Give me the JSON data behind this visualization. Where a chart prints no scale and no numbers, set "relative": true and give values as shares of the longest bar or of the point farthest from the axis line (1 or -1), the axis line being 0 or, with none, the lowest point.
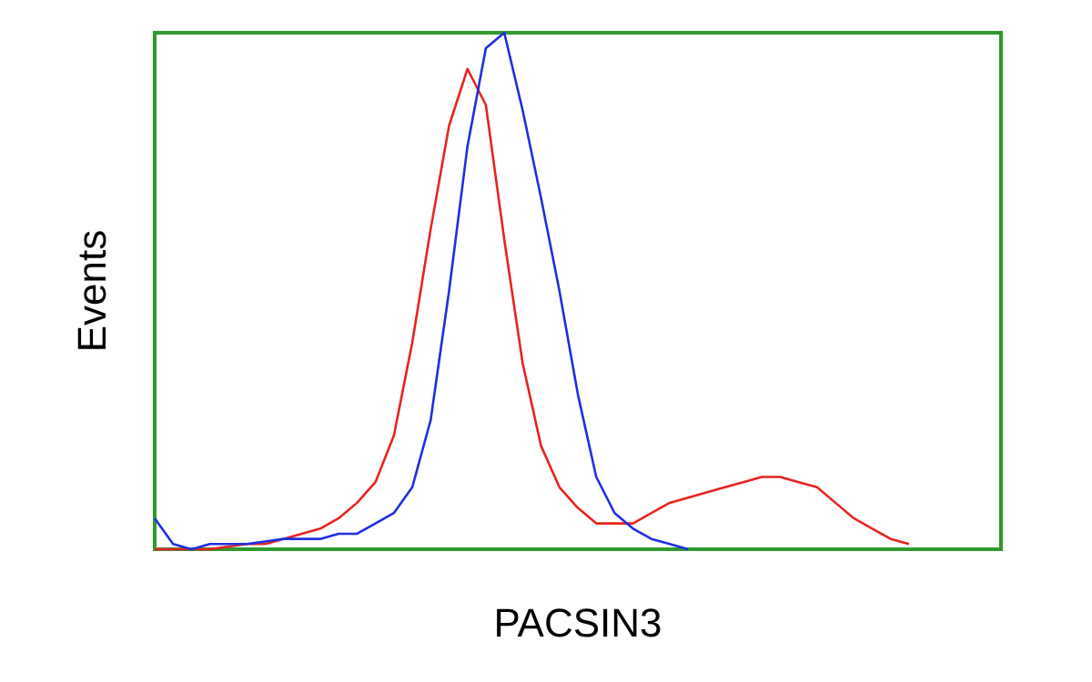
{
  "chart_data": {
    "type": "line",
    "relative": true,
    "xlabel": "PACSIN3",
    "ylabel": "Events",
    "categories": [
      null,
      null,
      null,
      null,
      null,
      null,
      null,
      null,
      null,
      null,
      null,
      null,
      null,
      null,
      null,
      null,
      null,
      null,
      null,
      null,
      null,
      null,
      null,
      null,
      null,
      null,
      null,
      null,
      null,
      null,
      null,
      null,
      null,
      null,
      null,
      null,
      null,
      null,
      null,
      null,
      null,
      null,
      null,
      null,
      null,
      null,
      null
    ],
    "marker": "none",
    "line_style": "solid",
    "series": [
      {
        "color": "#e8231f",
        "values": [
          0,
          0,
          0,
          0,
          0.005,
          0.01,
          0.01,
          0.02,
          0.03,
          0.04,
          0.06,
          0.09,
          0.13,
          0.22,
          0.4,
          0.62,
          0.82,
          0.93,
          0.86,
          0.6,
          0.36,
          0.2,
          0.12,
          0.08,
          0.05,
          0.05,
          0.05,
          0.07,
          0.09,
          0.1,
          0.11,
          0.12,
          0.13,
          0.14,
          0.14,
          0.13,
          0.12,
          0.09,
          0.06,
          0.04,
          0.02,
          0.01,
          null,
          null,
          null,
          null,
          null
        ]
      },
      {
        "color": "#1f2ee0",
        "values": [
          0.06,
          0.01,
          0,
          0.01,
          0.01,
          0.01,
          0.015,
          0.02,
          0.02,
          0.02,
          0.03,
          0.03,
          0.05,
          0.07,
          0.12,
          0.25,
          0.5,
          0.78,
          0.97,
          1,
          0.85,
          0.68,
          0.5,
          0.3,
          0.14,
          0.07,
          0.04,
          0.02,
          0.01,
          0,
          null,
          null,
          null,
          null,
          null,
          null,
          null,
          null,
          null,
          null,
          null,
          null,
          null,
          null,
          null,
          null,
          null
        ]
      }
    ]
  }
}
